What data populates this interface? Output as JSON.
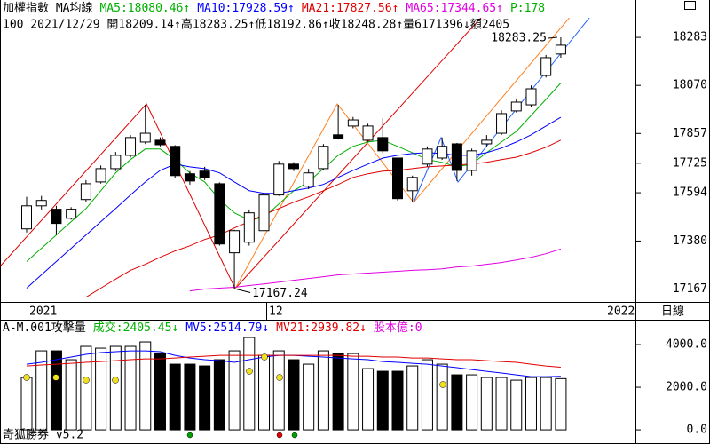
{
  "chart_data": [
    {
      "type": "candlestick",
      "title": "加權指數 MA均線",
      "legend": [
        {
          "text": "MA5:18080.46↑",
          "color": "#00b000"
        },
        {
          "text": "MA10:17928.59↑",
          "color": "#0000ff"
        },
        {
          "text": "MA21:17827.56↑",
          "color": "#e00000"
        },
        {
          "text": "MA65:17344.65↑",
          "color": "#e000e0"
        },
        {
          "text": "P:178",
          "color": "#00b000"
        }
      ],
      "info": "100 2021/12/29 開18209.14↑高18283.25↑低18192.86↑收18248.28↑量6171396↓額2405",
      "annotations": [
        "18283.25",
        "17167.24"
      ],
      "period_labels": [
        "2021",
        "12",
        "2022"
      ],
      "panel_label": "日線",
      "up_color": "#ffffff",
      "down_color": "#000000",
      "open": [
        17434,
        17536,
        17521,
        17481,
        17564,
        17642,
        17701,
        17760,
        17819,
        17827,
        17800,
        17678,
        17690,
        17634,
        17328,
        17375,
        17426,
        17584,
        17721,
        17623,
        17701,
        17851,
        17890,
        17827,
        17839,
        17748,
        17603,
        17721,
        17748,
        17811,
        17693,
        17811,
        17858,
        17957,
        17984,
        18114,
        18209.14
      ],
      "high": [
        17576,
        17580,
        17536,
        17530,
        17650,
        17715,
        17775,
        17850,
        17984,
        17840,
        17805,
        17690,
        17709,
        17640,
        17430,
        17520,
        17600,
        17735,
        17730,
        17700,
        17810,
        17984,
        17930,
        17900,
        17925,
        17750,
        17670,
        17800,
        17839,
        17815,
        17790,
        17850,
        17960,
        18010,
        18070,
        18205,
        18283.25
      ],
      "low": [
        17418,
        17520,
        17407,
        17475,
        17555,
        17635,
        17690,
        17750,
        17810,
        17800,
        17660,
        17630,
        17650,
        17360,
        17167.24,
        17360,
        17410,
        17580,
        17690,
        17610,
        17695,
        17830,
        17880,
        17820,
        17770,
        17560,
        17552,
        17710,
        17740,
        17646,
        17670,
        17800,
        17850,
        17950,
        17975,
        18105,
        18192.86
      ],
      "close": [
        17536,
        17560,
        17458,
        17521,
        17634,
        17701,
        17760,
        17839,
        17858,
        17807,
        17670,
        17646,
        17662,
        17367,
        17426,
        17505,
        17584,
        17721,
        17701,
        17682,
        17800,
        17835,
        17917,
        17890,
        17780,
        17568,
        17662,
        17788,
        17800,
        17693,
        17780,
        17827,
        17945,
        17996,
        18055,
        18193,
        18248.28
      ],
      "series": [
        {
          "name": "MA5",
          "color": "#00b000",
          "values": [
            17289,
            17348,
            17407,
            17466,
            17524,
            17603,
            17682,
            17741,
            17788,
            17788,
            17741,
            17682,
            17642,
            17564,
            17505,
            17473,
            17485,
            17544,
            17603,
            17642,
            17701,
            17760,
            17800,
            17819,
            17827,
            17800,
            17772,
            17741,
            17729,
            17709,
            17721,
            17772,
            17819,
            17866,
            17937,
            18008,
            18080.46
          ]
        },
        {
          "name": "MA10",
          "color": "#0000ff",
          "values": [
            17171,
            17230,
            17289,
            17348,
            17407,
            17466,
            17524,
            17584,
            17642,
            17693,
            17721,
            17709,
            17701,
            17682,
            17642,
            17603,
            17591,
            17591,
            17603,
            17615,
            17631,
            17662,
            17693,
            17721,
            17748,
            17760,
            17768,
            17772,
            17768,
            17760,
            17760,
            17772,
            17792,
            17819,
            17851,
            17890,
            17928.59
          ]
        },
        {
          "name": "MA21",
          "color": "#e00000",
          "values": [
            null,
            null,
            null,
            null,
            17131,
            17171,
            17211,
            17250,
            17277,
            17308,
            17336,
            17359,
            17387,
            17407,
            17438,
            17466,
            17497,
            17524,
            17552,
            17576,
            17603,
            17631,
            17662,
            17678,
            17690,
            17693,
            17701,
            17709,
            17713,
            17717,
            17721,
            17729,
            17741,
            17752,
            17772,
            17796,
            17827.56
          ]
        },
        {
          "name": "MA65",
          "color": "#e000e0",
          "values": [
            null,
            null,
            null,
            null,
            null,
            null,
            null,
            null,
            null,
            null,
            null,
            17159,
            17167,
            17171,
            17175,
            17183,
            17190,
            17198,
            17206,
            17214,
            17222,
            17230,
            17234,
            17238,
            17242,
            17246,
            17250,
            17253,
            17257,
            17265,
            17269,
            17277,
            17285,
            17296,
            17308,
            17324,
            17344.65
          ]
        }
      ],
      "ylim": [
        17110,
        18370
      ],
      "yticks": [
        17167,
        17380,
        17594,
        17725,
        17857,
        18070,
        18283
      ]
    },
    {
      "type": "bar",
      "title": "A-M.001攻擊量",
      "legend": [
        {
          "text": "成交:2405.45↓",
          "color": "#00b000"
        },
        {
          "text": "MV5:2514.79↓",
          "color": "#0000ff"
        },
        {
          "text": "MV21:2939.82↓",
          "color": "#e00000"
        },
        {
          "text": "股本億:0",
          "color": "#e000e0"
        }
      ],
      "footer": "奇狐勝券 v5.2",
      "values": [
        2458,
        3708,
        3708,
        3292,
        3917,
        3833,
        3917,
        3917,
        4125,
        3583,
        3083,
        3083,
        3000,
        3292,
        3708,
        4333,
        3500,
        3708,
        3292,
        3083,
        3708,
        3583,
        3583,
        2875,
        2750,
        2750,
        3000,
        3292,
        3083,
        2583,
        2583,
        2458,
        2458,
        2333,
        2458,
        2458,
        2405.45
      ],
      "series": [
        {
          "name": "MV5",
          "color": "#0000ff",
          "values": [
            3083,
            3167,
            3292,
            3417,
            3542,
            3625,
            3667,
            3708,
            3708,
            3667,
            3500,
            3375,
            3292,
            3250,
            3167,
            3292,
            3417,
            3500,
            3500,
            3458,
            3417,
            3375,
            3333,
            3292,
            3208,
            3167,
            3125,
            3083,
            3000,
            2917,
            2833,
            2750,
            2667,
            2583,
            2500,
            2500,
            2514.79
          ]
        },
        {
          "name": "MV21",
          "color": "#e00000",
          "values": [
            3000,
            3042,
            3083,
            3125,
            3167,
            3208,
            3250,
            3292,
            3333,
            3333,
            3375,
            3417,
            3458,
            3500,
            3500,
            3500,
            3500,
            3500,
            3500,
            3500,
            3500,
            3500,
            3458,
            3458,
            3417,
            3417,
            3375,
            3375,
            3333,
            3292,
            3292,
            3250,
            3208,
            3167,
            3083,
            3000,
            2939.82
          ]
        }
      ],
      "ylim": [
        -580,
        4960
      ],
      "yticks": [
        {
          "value": 4000,
          "label": "4000.0"
        },
        {
          "value": 2000,
          "label": "2000.0"
        },
        {
          "value": 0,
          "label": "0.0"
        }
      ]
    }
  ]
}
